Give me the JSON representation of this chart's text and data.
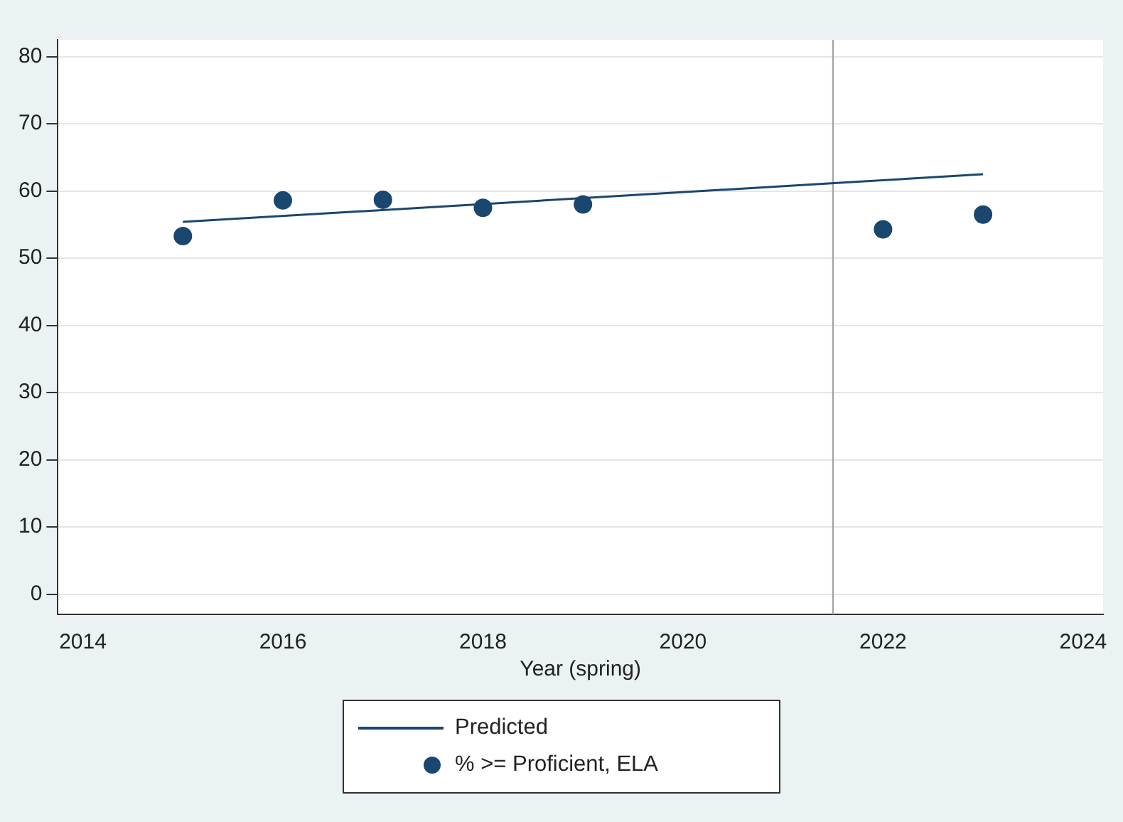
{
  "chart_data": {
    "type": "scatter",
    "xlabel": "Year (spring)",
    "xlim": [
      2013.75,
      2024.2
    ],
    "xticks": [
      2014,
      2016,
      2018,
      2020,
      2022,
      2024
    ],
    "ylim": [
      -3,
      82.5
    ],
    "yticks": [
      0,
      10,
      20,
      30,
      40,
      50,
      60,
      70,
      80
    ],
    "grid": "y",
    "legend": "bottom",
    "marker": "circle",
    "series": [
      {
        "name": "Predicted",
        "type": "line",
        "color": "#1a476f",
        "x": [
          2015,
          2023
        ],
        "values": [
          55.4,
          62.5
        ],
        "marker": "none"
      },
      {
        "name": "% >= Proficient, ELA",
        "color": "#1a476f",
        "x": [
          2015,
          2016,
          2017,
          2018,
          2019,
          2022,
          2023
        ],
        "values": [
          53.3,
          58.6,
          58.7,
          57.5,
          58.0,
          54.3,
          56.5
        ]
      }
    ],
    "ref_lines": [
      {
        "axis": "x",
        "value": 2021.5,
        "color": "#a6a6a6"
      }
    ]
  }
}
